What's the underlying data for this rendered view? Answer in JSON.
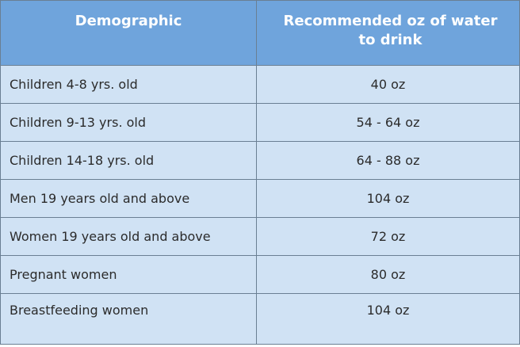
{
  "table": {
    "headers": {
      "demographic": "Demographic",
      "amount": "Recommended oz of water to drink"
    },
    "rows": [
      {
        "demographic": "Children 4-8 yrs. old",
        "amount": "40 oz"
      },
      {
        "demographic": "Children 9-13 yrs. old",
        "amount": "54 - 64 oz"
      },
      {
        "demographic": "Children 14-18 yrs. old",
        "amount": "64 - 88 oz"
      },
      {
        "demographic": "Men 19 years old and above",
        "amount": "104 oz"
      },
      {
        "demographic": "Women 19 years old and above",
        "amount": "72 oz"
      },
      {
        "demographic": "Pregnant women",
        "amount": "80 oz"
      },
      {
        "demographic": "Breastfeeding women",
        "amount": "104 oz"
      }
    ]
  },
  "colors": {
    "header_bg": "#6fa4dc",
    "cell_bg": "#d0e2f4",
    "border": "#6a7f93"
  }
}
